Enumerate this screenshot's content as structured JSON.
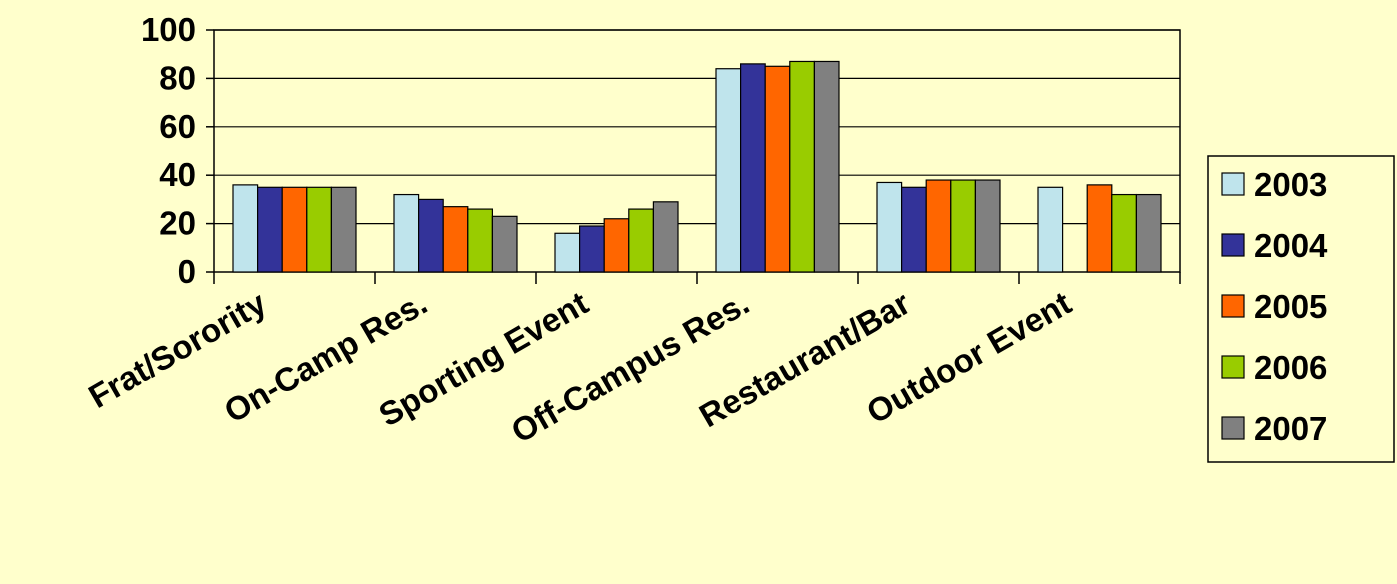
{
  "chart_data": {
    "type": "bar",
    "title": "",
    "xlabel": "",
    "ylabel": "",
    "ylim": [
      0,
      100
    ],
    "y_ticks": [
      "0",
      "20",
      "40",
      "60",
      "80",
      "100"
    ],
    "grid": "horizontal",
    "legend_position": "right",
    "categories": [
      "Frat/Sorority",
      "On-Camp Res.",
      "Sporting Event",
      "Off-Campus Res.",
      "Restaurant/Bar",
      "Outdoor Event"
    ],
    "series": [
      {
        "name": "2003",
        "color": "#BFE4EC",
        "values": [
          36,
          32,
          16,
          84,
          37,
          35
        ]
      },
      {
        "name": "2004",
        "color": "#333399",
        "values": [
          35,
          30,
          19,
          86,
          35,
          null
        ]
      },
      {
        "name": "2005",
        "color": "#FF6600",
        "values": [
          35,
          27,
          22,
          85,
          38,
          36
        ]
      },
      {
        "name": "2006",
        "color": "#99CC00",
        "values": [
          35,
          26,
          26,
          87,
          38,
          32
        ]
      },
      {
        "name": "2007",
        "color": "#808080",
        "values": [
          35,
          23,
          29,
          87,
          38,
          32
        ]
      }
    ],
    "colors": {
      "background": "#FFFFCC",
      "grid": "#000000",
      "bar_outline": "#000000"
    }
  }
}
